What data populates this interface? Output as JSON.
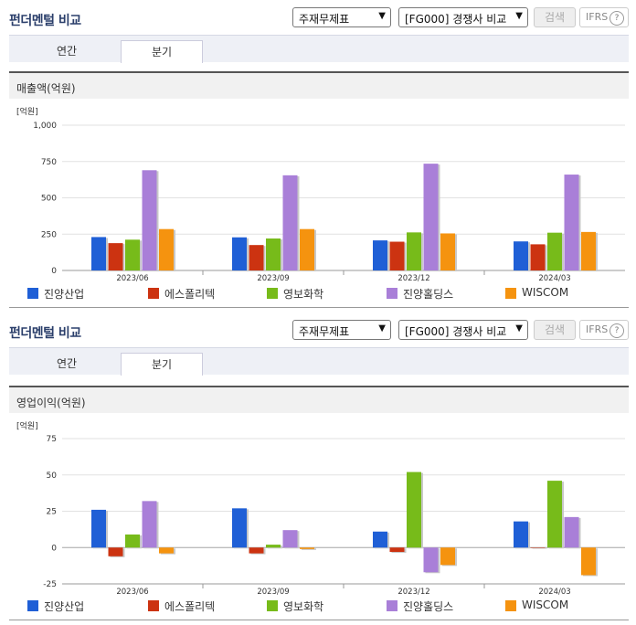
{
  "sections": [
    {
      "title": "펀더멘털 비교",
      "select1": "주재무제표",
      "select2": "[FG000] 경쟁사 비교",
      "search_label": "검색",
      "ifrs_label": "IFRS",
      "ifrs_help": "?",
      "tabs": [
        {
          "label": "연간"
        },
        {
          "label": "분기",
          "active": true
        }
      ],
      "chart_title": "매출액(억원)"
    },
    {
      "title": "펀더멘털 비교",
      "select1": "주재무제표",
      "select2": "[FG000] 경쟁사 비교",
      "search_label": "검색",
      "ifrs_label": "IFRS",
      "ifrs_help": "?",
      "tabs": [
        {
          "label": "연간"
        },
        {
          "label": "분기",
          "active": true
        }
      ],
      "chart_title": "영업이익(억원)"
    }
  ],
  "chart_data": [
    {
      "type": "bar",
      "title": "매출액(억원)",
      "unit_label": "[억원]",
      "categories": [
        "2023/06",
        "2023/09",
        "2023/12",
        "2024/03"
      ],
      "ylim": [
        0,
        1000
      ],
      "yticks": [
        0,
        250,
        500,
        750,
        1000
      ],
      "ytick_labels": [
        "0",
        "250",
        "500",
        "750",
        "1,000"
      ],
      "grid": true,
      "legend_position": "bottom",
      "series": [
        {
          "name": "진양산업",
          "color": "#1f5fd6",
          "values": [
            230,
            228,
            207,
            200
          ]
        },
        {
          "name": "에스폴리텍",
          "color": "#cc3311",
          "values": [
            188,
            175,
            198,
            180
          ]
        },
        {
          "name": "영보화학",
          "color": "#77bb1a",
          "values": [
            212,
            220,
            262,
            260
          ]
        },
        {
          "name": "진양홀딩스",
          "color": "#a97fd8",
          "values": [
            690,
            655,
            735,
            660
          ]
        },
        {
          "name": "WISCOM",
          "color": "#f5930f",
          "values": [
            285,
            285,
            255,
            265
          ]
        }
      ]
    },
    {
      "type": "bar",
      "title": "영업이익(억원)",
      "unit_label": "[억원]",
      "categories": [
        "2023/06",
        "2023/09",
        "2023/12",
        "2024/03"
      ],
      "ylim": [
        -25,
        75
      ],
      "yticks": [
        -25,
        0,
        25,
        50,
        75
      ],
      "ytick_labels": [
        "-25",
        "0",
        "25",
        "50",
        "75"
      ],
      "grid": true,
      "legend_position": "bottom",
      "series": [
        {
          "name": "진양산업",
          "color": "#1f5fd6",
          "values": [
            26,
            27,
            11,
            18
          ]
        },
        {
          "name": "에스폴리텍",
          "color": "#cc3311",
          "values": [
            -6,
            -4,
            -3,
            0
          ]
        },
        {
          "name": "영보화학",
          "color": "#77bb1a",
          "values": [
            9,
            2,
            52,
            46
          ]
        },
        {
          "name": "진양홀딩스",
          "color": "#a97fd8",
          "values": [
            32,
            12,
            -17,
            21
          ]
        },
        {
          "name": "WISCOM",
          "color": "#f5930f",
          "values": [
            -4,
            -1,
            -12,
            -19
          ]
        }
      ]
    }
  ]
}
